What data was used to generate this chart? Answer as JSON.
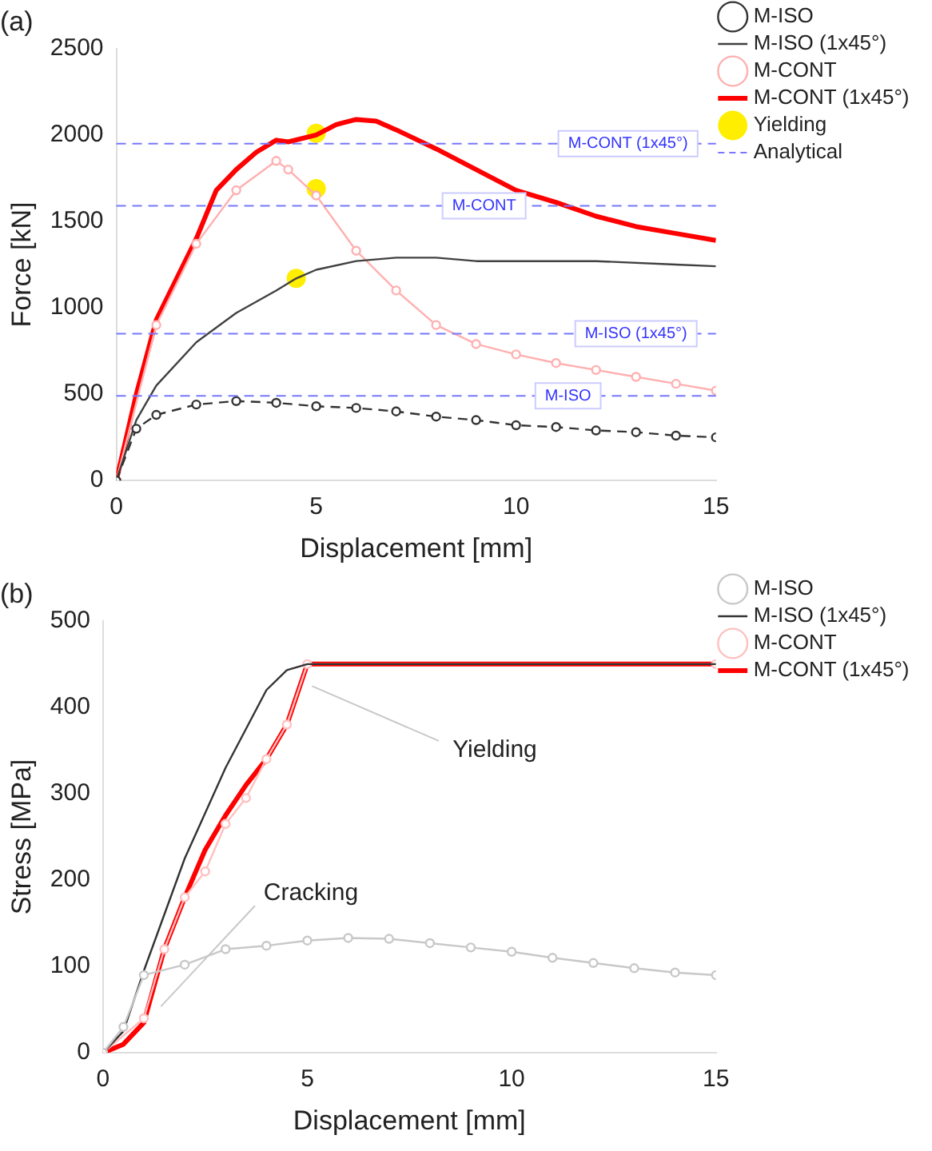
{
  "chart_data": [
    {
      "type": "line",
      "title": "(a)",
      "xlabel": "Displacement [mm]",
      "ylabel": "Force [kN]",
      "xlim": [
        0,
        15
      ],
      "xticks": [
        0,
        5,
        10,
        15
      ],
      "ylim": [
        0,
        2500
      ],
      "yticks": [
        0,
        500,
        1000,
        1500,
        2000,
        2500
      ],
      "grid": false,
      "legend": "right",
      "series": [
        {
          "name": "M-ISO",
          "color": "#333333",
          "line_style": "dashed",
          "marker": "circle",
          "x": [
            0,
            0.5,
            1,
            2,
            3,
            4,
            5,
            6,
            7,
            8,
            9,
            10,
            11,
            12,
            13,
            14,
            15
          ],
          "values": [
            0,
            300,
            380,
            440,
            460,
            450,
            430,
            420,
            400,
            370,
            350,
            320,
            310,
            290,
            280,
            260,
            250
          ]
        },
        {
          "name": "M-ISO (1x45°)",
          "color": "#404040",
          "marker": "none",
          "x": [
            0,
            0.5,
            1,
            2,
            3,
            4,
            4.5,
            5,
            6,
            7,
            8,
            9,
            10,
            12,
            14,
            15
          ],
          "values": [
            0,
            350,
            550,
            800,
            970,
            1100,
            1170,
            1220,
            1270,
            1290,
            1290,
            1270,
            1270,
            1270,
            1250,
            1240
          ]
        },
        {
          "name": "M-CONT",
          "color": "#ffb0b0",
          "marker": "circle",
          "x": [
            0,
            1,
            2,
            3,
            4,
            4.3,
            5,
            6,
            7,
            8,
            9,
            10,
            11,
            12,
            13,
            14,
            15
          ],
          "values": [
            0,
            900,
            1370,
            1680,
            1850,
            1800,
            1650,
            1330,
            1100,
            900,
            790,
            730,
            680,
            640,
            600,
            560,
            520
          ]
        },
        {
          "name": "M-CONT (1x45°)",
          "color": "#ff0000",
          "marker": "none",
          "x": [
            0,
            0.5,
            1,
            2,
            2.5,
            3,
            3.5,
            4,
            4.3,
            5,
            5.5,
            6,
            6.5,
            7,
            8,
            9,
            10,
            11,
            12,
            13,
            14,
            15
          ],
          "values": [
            0,
            500,
            930,
            1400,
            1680,
            1800,
            1900,
            1970,
            1960,
            2000,
            2060,
            2090,
            2080,
            2030,
            1920,
            1800,
            1680,
            1610,
            1530,
            1470,
            1430,
            1390
          ]
        },
        {
          "name": "Yielding",
          "type": "scatter",
          "color": "#ffee00",
          "marker": "circle",
          "x": [
            5,
            5,
            4.5
          ],
          "values": [
            2010,
            1690,
            1170
          ]
        }
      ],
      "ref_lines": [
        {
          "axis": "y",
          "value": 1950,
          "label": "M-CONT (1x45°)",
          "color": "#7777ff",
          "line_style": "dashed"
        },
        {
          "axis": "y",
          "value": 1590,
          "label": "M-CONT",
          "color": "#7777ff",
          "line_style": "dashed"
        },
        {
          "axis": "y",
          "value": 850,
          "label": "M-ISO (1x45°)",
          "color": "#7777ff",
          "line_style": "dashed"
        },
        {
          "axis": "y",
          "value": 490,
          "label": "M-ISO",
          "color": "#7777ff",
          "line_style": "dashed"
        }
      ],
      "annotations": [
        "Analytical"
      ]
    },
    {
      "type": "line",
      "title": "(b)",
      "xlabel": "Displacement [mm]",
      "ylabel": "Stress [MPa]",
      "xlim": [
        0,
        15
      ],
      "xticks": [
        0,
        5,
        10,
        15
      ],
      "ylim": [
        0,
        500
      ],
      "yticks": [
        0,
        100,
        200,
        300,
        400,
        500
      ],
      "grid": false,
      "legend": "right",
      "series": [
        {
          "name": "M-ISO",
          "color": "#c8c8c8",
          "marker": "circle",
          "x": [
            0,
            0.5,
            1,
            2,
            3,
            4,
            5,
            6,
            7,
            8,
            9,
            10,
            11,
            12,
            13,
            14,
            15
          ],
          "values": [
            0,
            30,
            90,
            102,
            120,
            124,
            130,
            133,
            132,
            127,
            122,
            117,
            110,
            104,
            98,
            93,
            90
          ]
        },
        {
          "name": "M-ISO (1x45°)",
          "color": "#333333",
          "marker": "none",
          "x": [
            0,
            0.5,
            1,
            2,
            3,
            4,
            4.5,
            5,
            15
          ],
          "values": [
            0,
            25,
            95,
            225,
            330,
            420,
            443,
            450,
            450
          ]
        },
        {
          "name": "M-CONT",
          "color": "#ffc0c0",
          "marker": "circle",
          "x": [
            0,
            1,
            1.5,
            2,
            2.5,
            3,
            3.5,
            4,
            4.5,
            5,
            15
          ],
          "values": [
            0,
            40,
            120,
            180,
            210,
            265,
            295,
            340,
            380,
            450,
            450
          ]
        },
        {
          "name": "M-CONT (1x45°)",
          "color": "#ff0000",
          "marker": "none",
          "x": [
            0,
            0.5,
            1,
            1.5,
            2,
            2.5,
            3,
            3.5,
            4,
            4.5,
            5,
            15
          ],
          "values": [
            0,
            10,
            35,
            120,
            180,
            235,
            275,
            310,
            340,
            380,
            450,
            450
          ]
        }
      ],
      "annotations": [
        {
          "text": "Yielding",
          "x": 5,
          "y": 430
        },
        {
          "text": "Cracking",
          "x": 1.3,
          "y": 50
        }
      ]
    }
  ]
}
